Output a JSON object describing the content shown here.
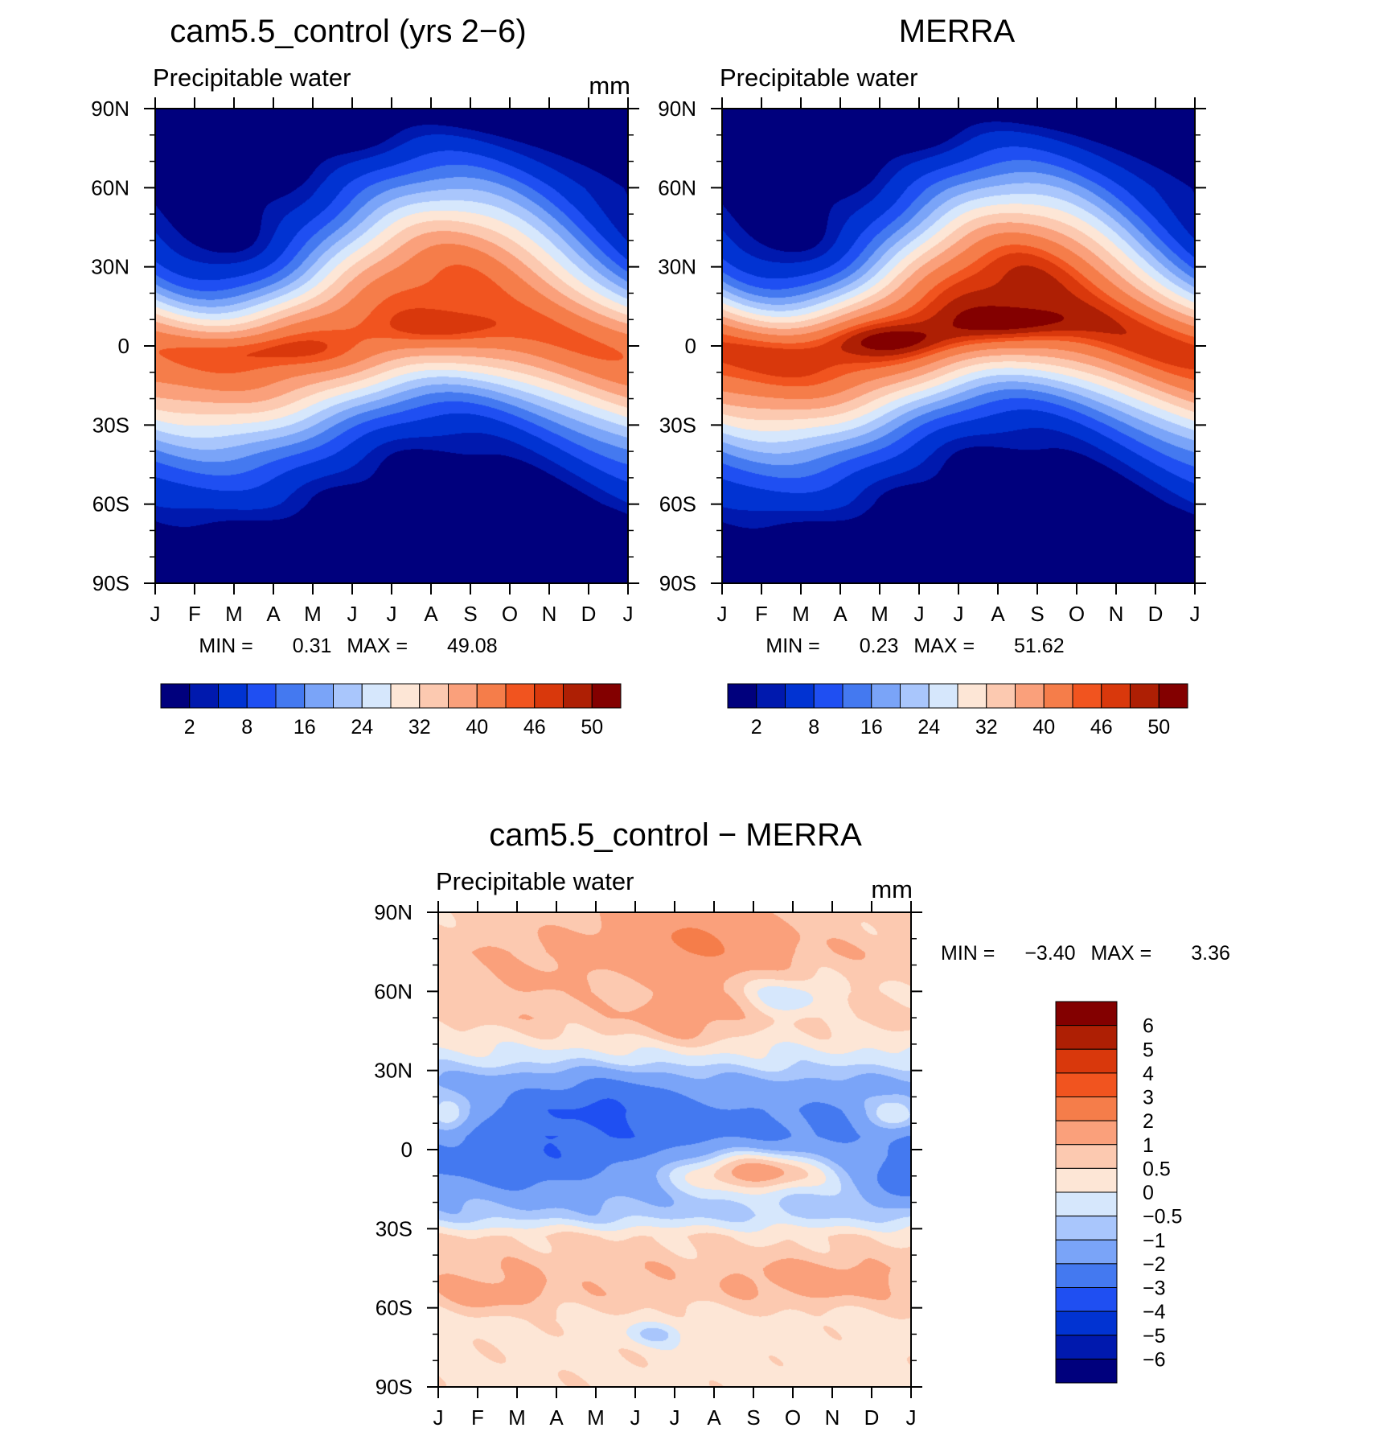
{
  "chart_data": [
    {
      "type": "heatmap",
      "title": "cam5.5_control (yrs 2−6)",
      "left_label": "Precipitable water",
      "units": "mm",
      "x_ticks": [
        "J",
        "F",
        "M",
        "A",
        "M",
        "J",
        "J",
        "A",
        "S",
        "O",
        "N",
        "D",
        "J"
      ],
      "y_ticks": [
        "90N",
        "60N",
        "30N",
        "0",
        "30S",
        "60S",
        "90S"
      ],
      "xlim": [
        0,
        12
      ],
      "ylim": [
        -90,
        90
      ],
      "min_label": "MIN =",
      "min_value": "0.31",
      "max_label": "MAX =",
      "max_value": "49.08",
      "field": {
        "equator_peak": 44,
        "peak_lat": 2,
        "itcz_shift": 7,
        "ramp_smooth": 8,
        "hotspots": [
          {
            "month": 3.0,
            "lat": -2,
            "amp": 3
          },
          {
            "month": 7.5,
            "lat": 7,
            "amp": 3
          }
        ]
      },
      "colorbar": {
        "orientation": "horizontal",
        "levels": [
          0,
          2,
          4,
          8,
          12,
          16,
          20,
          24,
          28,
          32,
          36,
          40,
          44,
          46,
          48,
          50,
          52
        ],
        "labels": [
          "2",
          "8",
          "16",
          "24",
          "32",
          "40",
          "46",
          "50"
        ],
        "colors": [
          "#00007d",
          "#0019ae",
          "#0133d2",
          "#1f4ff2",
          "#4479f0",
          "#7aa4f8",
          "#a9c6fc",
          "#d6e7fc",
          "#fde6d6",
          "#fcc9b0",
          "#faa07b",
          "#f57d4a",
          "#f1541f",
          "#d9380c",
          "#ae1f04",
          "#830000"
        ]
      }
    },
    {
      "type": "heatmap",
      "title": "MERRA",
      "left_label": "Precipitable water",
      "units": "",
      "x_ticks": [
        "J",
        "F",
        "M",
        "A",
        "M",
        "J",
        "J",
        "A",
        "S",
        "O",
        "N",
        "D",
        "J"
      ],
      "y_ticks": [
        "90N",
        "60N",
        "30N",
        "0",
        "30S",
        "60S",
        "90S"
      ],
      "xlim": [
        0,
        12
      ],
      "ylim": [
        -90,
        90
      ],
      "min_label": "MIN =",
      "min_value": "0.23",
      "max_label": "MAX =",
      "max_value": "51.62",
      "field": {
        "equator_peak": 47,
        "peak_lat": 3,
        "itcz_shift": 8,
        "ramp_smooth": 8,
        "hotspots": [
          {
            "month": 4.5,
            "lat": 2,
            "amp": 4
          },
          {
            "month": 7.5,
            "lat": 9,
            "amp": 4
          }
        ]
      },
      "colorbar": {
        "orientation": "horizontal",
        "levels": [
          0,
          2,
          4,
          8,
          12,
          16,
          20,
          24,
          28,
          32,
          36,
          40,
          44,
          46,
          48,
          50,
          52
        ],
        "labels": [
          "2",
          "8",
          "16",
          "24",
          "32",
          "40",
          "46",
          "50"
        ],
        "colors": [
          "#00007d",
          "#0019ae",
          "#0133d2",
          "#1f4ff2",
          "#4479f0",
          "#7aa4f8",
          "#a9c6fc",
          "#d6e7fc",
          "#fde6d6",
          "#fcc9b0",
          "#faa07b",
          "#f57d4a",
          "#f1541f",
          "#d9380c",
          "#ae1f04",
          "#830000"
        ]
      }
    },
    {
      "type": "heatmap",
      "title": "cam5.5_control − MERRA",
      "left_label": "Precipitable water",
      "units": "mm",
      "x_ticks": [
        "J",
        "F",
        "M",
        "A",
        "M",
        "J",
        "J",
        "A",
        "S",
        "O",
        "N",
        "D",
        "J"
      ],
      "y_ticks": [
        "90N",
        "60N",
        "30N",
        "0",
        "30S",
        "60S",
        "90S"
      ],
      "xlim": [
        0,
        12
      ],
      "ylim": [
        -90,
        90
      ],
      "min_label": "MIN =",
      "min_value": "−3.40",
      "max_label": "MAX =",
      "max_value": "3.36",
      "field": {
        "bands": [
          [
            90,
            0.6
          ],
          [
            75,
            0.9
          ],
          [
            60,
            0.55
          ],
          [
            50,
            0.7
          ],
          [
            42,
            0.3
          ],
          [
            33,
            -0.4
          ],
          [
            25,
            -1.4
          ],
          [
            15,
            -2.3
          ],
          [
            5,
            -2.6
          ],
          [
            -5,
            -2.1
          ],
          [
            -15,
            -1.3
          ],
          [
            -25,
            -0.7
          ],
          [
            -33,
            0.5
          ],
          [
            -45,
            0.8
          ],
          [
            -55,
            0.7
          ],
          [
            -65,
            0.3
          ],
          [
            -78,
            0.3
          ],
          [
            -90,
            0.3
          ]
        ],
        "anomalies": [
          {
            "month": 6.5,
            "lat": 80,
            "amp": 1.3,
            "sx": 1.6,
            "sy": 10
          },
          {
            "month": 6.3,
            "lat": 50,
            "amp": 0.8,
            "sx": 1.0,
            "sy": 8
          },
          {
            "month": 8.9,
            "lat": 58,
            "amp": -0.9,
            "sx": 0.7,
            "sy": 5
          },
          {
            "month": 2.5,
            "lat": 62,
            "amp": 0.4,
            "sx": 1.0,
            "sy": 6
          },
          {
            "month": 8.0,
            "lat": -8,
            "amp": 3.0,
            "sx": 1.5,
            "sy": 6
          },
          {
            "month": 4.3,
            "lat": 20,
            "amp": -0.9,
            "sx": 1.0,
            "sy": 7
          },
          {
            "month": 2.0,
            "lat": -8,
            "amp": -0.8,
            "sx": 1.0,
            "sy": 6
          },
          {
            "month": 0.3,
            "lat": 13,
            "amp": 2.2,
            "sx": 0.6,
            "sy": 6
          },
          {
            "month": 11.6,
            "lat": 13,
            "amp": 2.2,
            "sx": 0.6,
            "sy": 6
          },
          {
            "month": 11.8,
            "lat": -12,
            "amp": -1.5,
            "sx": 0.5,
            "sy": 6
          },
          {
            "month": 9.5,
            "lat": -50,
            "amp": 0.7,
            "sx": 1.6,
            "sy": 6
          },
          {
            "month": 1.3,
            "lat": -55,
            "amp": 0.6,
            "sx": 1.0,
            "sy": 5
          },
          {
            "month": 5.5,
            "lat": -70,
            "amp": -0.9,
            "sx": 0.5,
            "sy": 3
          }
        ]
      },
      "colorbar": {
        "orientation": "vertical",
        "levels": [
          -7,
          -6,
          -5,
          -4,
          -3,
          -2,
          -1,
          -0.5,
          0,
          0.5,
          1,
          2,
          3,
          4,
          5,
          6,
          7
        ],
        "labels": [
          "6",
          "5",
          "4",
          "3",
          "2",
          "1",
          "0.5",
          "0",
          "−0.5",
          "−1",
          "−2",
          "−3",
          "−4",
          "−5",
          "−6"
        ],
        "colors": [
          "#00007d",
          "#0019ae",
          "#0133d2",
          "#1f4ff2",
          "#4479f0",
          "#7aa4f8",
          "#a9c6fc",
          "#d6e7fc",
          "#fde6d6",
          "#fcc9b0",
          "#faa07b",
          "#f57d4a",
          "#f1541f",
          "#d9380c",
          "#ae1f04",
          "#830000"
        ]
      }
    }
  ]
}
